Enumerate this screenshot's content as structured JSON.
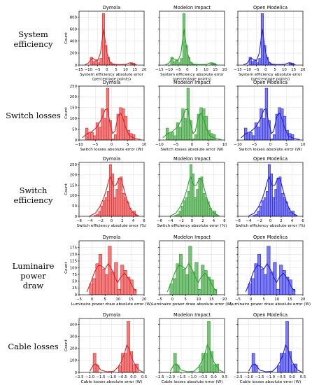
{
  "row_labels": [
    [
      "System",
      "efficiency"
    ],
    [
      "Switch losses"
    ],
    [
      "Switch",
      "efficiency"
    ],
    [
      "Luminaire power",
      "draw"
    ],
    [
      "Cable losses"
    ]
  ],
  "tools": [
    "Dymola",
    "Modelon Impact",
    "Open Modelica"
  ],
  "colors": {
    "Dymola": "#d62728",
    "Modelon Impact": "#2ca02c",
    "Open Modelica": "#1f1fd6"
  },
  "fills": {
    "Dymola": "#ef7d7d",
    "Modelon Impact": "#7dc07d",
    "Open Modelica": "#7d7def"
  },
  "chart_data": [
    {
      "type": "bar",
      "row": "System efficiency",
      "ylabel": "Count",
      "xlabel": [
        "System efficiency absolute error",
        "(percentage points)"
      ],
      "xlim": [
        -15,
        20
      ],
      "ylim": [
        0,
        900
      ],
      "xticks": [
        -15,
        -10,
        -5,
        0,
        5,
        10,
        15,
        20
      ],
      "yticks": [
        0,
        200,
        400,
        600,
        800
      ],
      "bins": [
        -9,
        -7.7,
        -6.4,
        -5.1,
        -3.8,
        -2.5,
        -1.2,
        0.1,
        1.4,
        2.7,
        12.5,
        13.8
      ],
      "counts": [
        130,
        60,
        90,
        40,
        110,
        860,
        330,
        130,
        40,
        20,
        40,
        30
      ],
      "kde": [
        [
          -12,
          5
        ],
        [
          -10,
          30
        ],
        [
          -8,
          120
        ],
        [
          -6.5,
          90
        ],
        [
          -5,
          70
        ],
        [
          -3.5,
          200
        ],
        [
          -2.3,
          480
        ],
        [
          -1.8,
          600
        ],
        [
          -1,
          420
        ],
        [
          0,
          200
        ],
        [
          1.5,
          60
        ],
        [
          3,
          20
        ],
        [
          6,
          8
        ],
        [
          10,
          10
        ],
        [
          12.5,
          40
        ],
        [
          14,
          20
        ],
        [
          16,
          5
        ]
      ]
    },
    {
      "type": "bar",
      "row": "Switch losses",
      "ylabel": "Count",
      "xlabel": [
        "Switch losses absolute error (W)"
      ],
      "xlim": [
        -10,
        10
      ],
      "ylim": [
        0,
        250
      ],
      "xticks": [
        -10,
        -5,
        0,
        5,
        10
      ],
      "yticks": [
        0,
        50,
        100,
        150,
        200,
        250
      ],
      "bins": [
        -8,
        -7.2,
        -6.4,
        -5.6,
        -4.8,
        -4,
        -3.2,
        -2.4,
        -1.6,
        -0.8,
        0,
        0.8,
        1.6,
        2.4,
        3.2,
        4,
        4.8,
        5.6,
        6.4
      ],
      "counts": [
        55,
        30,
        35,
        20,
        80,
        60,
        145,
        100,
        240,
        90,
        5,
        25,
        120,
        150,
        145,
        110,
        45,
        30,
        25
      ],
      "kde": [
        [
          -9,
          10
        ],
        [
          -7.5,
          30
        ],
        [
          -6,
          40
        ],
        [
          -4.5,
          60
        ],
        [
          -3,
          100
        ],
        [
          -2,
          140
        ],
        [
          -1.3,
          145
        ],
        [
          -0.5,
          80
        ],
        [
          0.3,
          30
        ],
        [
          1,
          40
        ],
        [
          2,
          110
        ],
        [
          2.8,
          125
        ],
        [
          3.5,
          100
        ],
        [
          4.5,
          50
        ],
        [
          5.5,
          20
        ],
        [
          7,
          8
        ],
        [
          9,
          2
        ]
      ]
    },
    {
      "type": "bar",
      "row": "Switch efficiency",
      "ylabel": "Count",
      "xlabel": [
        "Switch efficiency absolute error (%)"
      ],
      "xlim": [
        -6,
        6
      ],
      "ylim": [
        0,
        260
      ],
      "xticks": [
        -6,
        -4,
        -2,
        0,
        2,
        4,
        6
      ],
      "yticks": [
        0,
        50,
        100,
        150,
        200,
        250
      ],
      "bins": [
        -3.2,
        -2.8,
        -2.4,
        -2,
        -1.6,
        -1.2,
        -0.8,
        -0.4,
        0,
        0.4,
        0.8,
        1.2,
        1.6,
        2,
        2.4,
        2.8,
        3.2,
        3.6,
        4,
        4.4
      ],
      "counts": [
        5,
        10,
        25,
        50,
        75,
        90,
        120,
        250,
        205,
        90,
        130,
        185,
        190,
        110,
        90,
        70,
        40,
        20,
        25,
        5
      ],
      "kde": [
        [
          -4,
          2
        ],
        [
          -3,
          15
        ],
        [
          -2.2,
          45
        ],
        [
          -1.5,
          85
        ],
        [
          -1,
          125
        ],
        [
          -0.5,
          175
        ],
        [
          -0.2,
          190
        ],
        [
          0.3,
          150
        ],
        [
          0.8,
          150
        ],
        [
          1.4,
          185
        ],
        [
          1.8,
          180
        ],
        [
          2.4,
          120
        ],
        [
          3,
          65
        ],
        [
          3.6,
          30
        ],
        [
          4.2,
          12
        ],
        [
          5,
          3
        ]
      ]
    },
    {
      "type": "bar",
      "row": "Luminaire power draw",
      "ylabel": "Count",
      "xlabel": [
        "Luminaire power draw absolute error (W)"
      ],
      "xlim": [
        -5,
        20
      ],
      "ylim": [
        0,
        200
      ],
      "xticks": [
        -5,
        0,
        5,
        10,
        15,
        20
      ],
      "yticks": [
        0,
        25,
        50,
        75,
        100,
        125,
        150,
        175
      ],
      "bins": [
        -1,
        0.2,
        1.4,
        2.6,
        3.8,
        5,
        6.2,
        7.4,
        8.6,
        9.8,
        11,
        12.2,
        13.4,
        14.6,
        15.8
      ],
      "counts": [
        40,
        60,
        115,
        150,
        95,
        75,
        180,
        85,
        120,
        20,
        110,
        90,
        65,
        55,
        20
      ],
      "kde": [
        [
          -2,
          10
        ],
        [
          -0.5,
          45
        ],
        [
          1,
          85
        ],
        [
          2.5,
          110
        ],
        [
          3.8,
          105
        ],
        [
          5,
          95
        ],
        [
          6.2,
          115
        ],
        [
          7.5,
          95
        ],
        [
          8.8,
          65
        ],
        [
          9.8,
          45
        ],
        [
          11,
          65
        ],
        [
          12.5,
          80
        ],
        [
          14,
          60
        ],
        [
          15.5,
          30
        ],
        [
          17,
          10
        ]
      ]
    },
    {
      "type": "bar",
      "row": "Cable losses",
      "ylabel": "Count",
      "xlabel": [
        "Cable losses absolute error (W)"
      ],
      "xlim": [
        -2.5,
        0.5
      ],
      "ylim": [
        0,
        450
      ],
      "xticks": [
        -2.5,
        -2.0,
        -1.5,
        -1.0,
        -0.5,
        0.0,
        0.5
      ],
      "yticks": [
        0,
        100,
        200,
        300,
        400
      ],
      "bins": [
        -1.85,
        -1.72,
        -0.68,
        -0.55,
        -0.42,
        -0.29,
        -0.16,
        -0.03,
        0.1
      ],
      "counts": [
        160,
        60,
        55,
        160,
        160,
        425,
        175,
        65,
        70
      ],
      "kde": [
        [
          -2,
          10
        ],
        [
          -1.85,
          60
        ],
        [
          -1.7,
          70
        ],
        [
          -1.5,
          20
        ],
        [
          -1.2,
          5
        ],
        [
          -0.9,
          10
        ],
        [
          -0.7,
          45
        ],
        [
          -0.55,
          90
        ],
        [
          -0.4,
          160
        ],
        [
          -0.3,
          230
        ],
        [
          -0.2,
          200
        ],
        [
          -0.1,
          140
        ],
        [
          0,
          90
        ],
        [
          0.1,
          60
        ],
        [
          0.25,
          20
        ],
        [
          0.45,
          3
        ]
      ]
    }
  ]
}
